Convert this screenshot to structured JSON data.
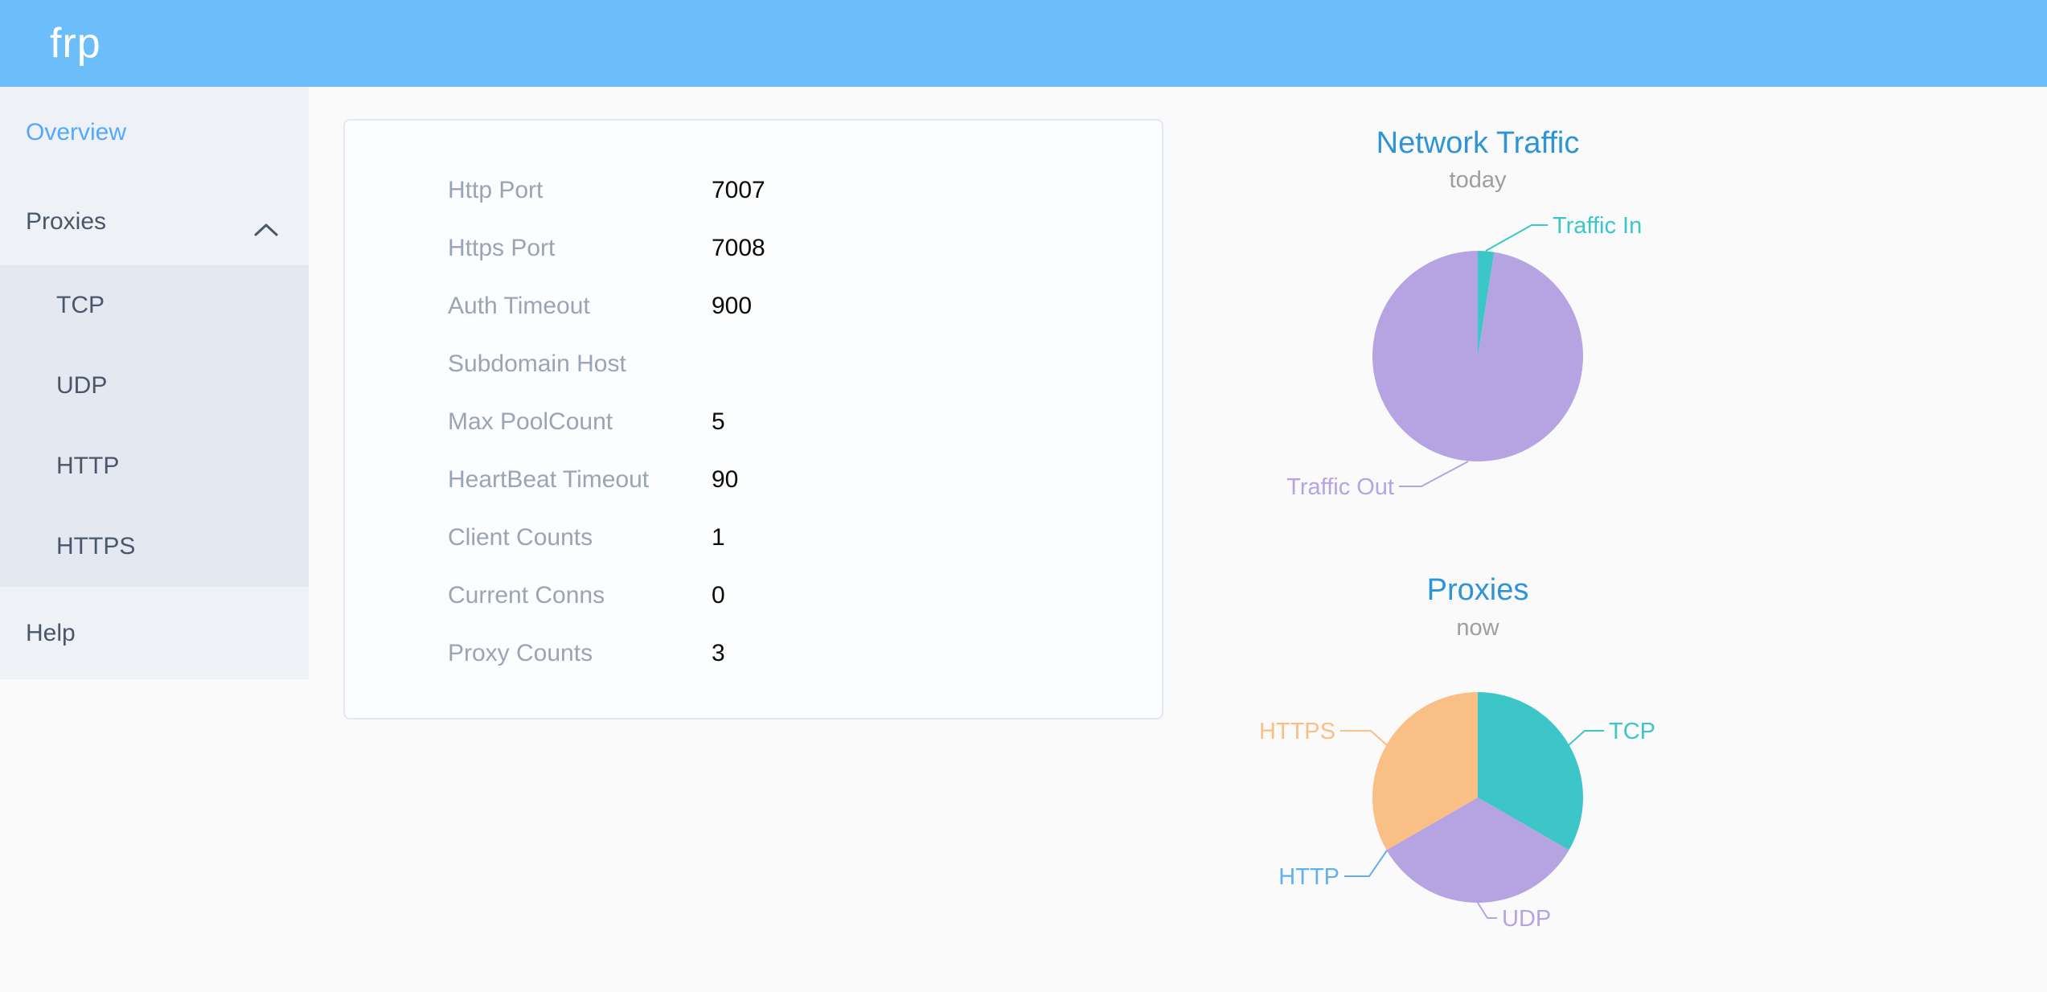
{
  "header": {
    "logo": "frp",
    "background_color": "#6cbefa"
  },
  "sidebar": {
    "active_color": "#53a8ff",
    "items": [
      {
        "label": "Overview",
        "active": true
      },
      {
        "label": "Proxies",
        "expanded": true,
        "children": [
          {
            "label": "TCP"
          },
          {
            "label": "UDP"
          },
          {
            "label": "HTTP"
          },
          {
            "label": "HTTPS"
          }
        ]
      },
      {
        "label": "Help"
      }
    ]
  },
  "card": {
    "rows": [
      {
        "label": "Http Port",
        "value": "7007"
      },
      {
        "label": "Https Port",
        "value": "7008"
      },
      {
        "label": "Auth Timeout",
        "value": "900"
      },
      {
        "label": "Subdomain Host",
        "value": ""
      },
      {
        "label": "Max PoolCount",
        "value": "5"
      },
      {
        "label": "HeartBeat Timeout",
        "value": "90"
      },
      {
        "label": "Client Counts",
        "value": "1"
      },
      {
        "label": "Current Conns",
        "value": "0"
      },
      {
        "label": "Proxy Counts",
        "value": "3"
      }
    ]
  },
  "chart_data": [
    {
      "type": "pie",
      "title": "Network Traffic",
      "subtitle": "today",
      "title_color": "#2e94d5",
      "legend_position": "none",
      "labels": "outside-leader-lines",
      "series": [
        {
          "name": "Traffic In",
          "value": 2.5,
          "color": "#3dc6c8"
        },
        {
          "name": "Traffic Out",
          "value": 97.5,
          "color": "#b6a3e2"
        }
      ]
    },
    {
      "type": "pie",
      "title": "Proxies",
      "subtitle": "now",
      "title_color": "#2e94d5",
      "legend_position": "none",
      "labels": "outside-leader-lines",
      "series": [
        {
          "name": "TCP",
          "value": 1,
          "color": "#3dc6c8"
        },
        {
          "name": "UDP",
          "value": 1,
          "color": "#b6a3e2"
        },
        {
          "name": "HTTP",
          "value": 0,
          "color": "#63b0f1"
        },
        {
          "name": "HTTPS",
          "value": 1,
          "color": "#f9bf84"
        }
      ]
    }
  ]
}
